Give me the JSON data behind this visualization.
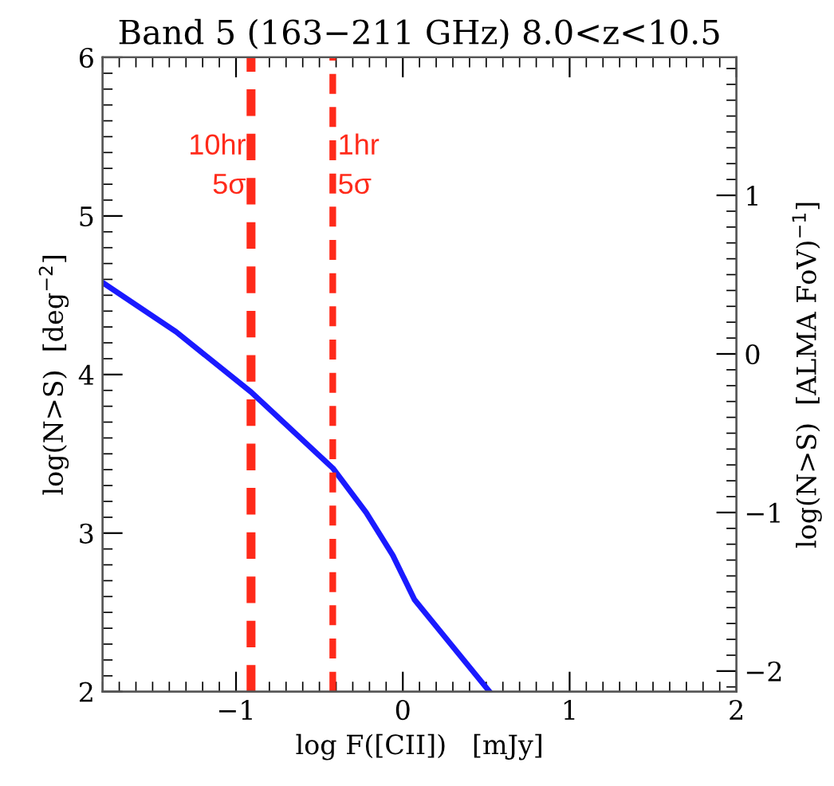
{
  "chart_data": {
    "type": "line",
    "title": "Band 5 (163−211 GHz) 8.0<z<10.5",
    "xlabel": "log F([CII])   [mJy]",
    "ylabel": "log(N>S)  [deg$^{−2}$]",
    "y2label": "log(N>S)  [ALMA FoV)$^{−1}$]",
    "xlim": [
      -1.8,
      2
    ],
    "xticks": [
      {
        "value": -1,
        "label": "−1"
      },
      0,
      1,
      2
    ],
    "ylim": [
      2,
      6
    ],
    "yticks": [
      2,
      3,
      4,
      5,
      6
    ],
    "y2lim": [
      -2.13,
      1.87
    ],
    "y2ticks": [
      {
        "value": -2,
        "label": "−2"
      },
      {
        "value": -1,
        "label": "−1"
      },
      0,
      1
    ],
    "x": [
      -1.8,
      -1.36,
      -0.91,
      -0.42,
      -0.22,
      -0.06,
      0.07,
      0.52
    ],
    "series": [
      {
        "color": "#1a1aff",
        "values": [
          4.58,
          4.27,
          3.89,
          3.41,
          3.13,
          2.86,
          2.58,
          2.0
        ]
      }
    ],
    "ref_lines": [
      {
        "axis": "x",
        "value": -0.91,
        "label": "10hr\n5σ",
        "color": "#ff2a1a",
        "line_style": "dashed"
      },
      {
        "axis": "x",
        "value": -0.42,
        "label": "1hr\n5σ",
        "color": "#ff2a1a",
        "line_style": "dashed"
      }
    ],
    "grid": false,
    "legend": false,
    "marker": "none",
    "line_style": "solid"
  }
}
